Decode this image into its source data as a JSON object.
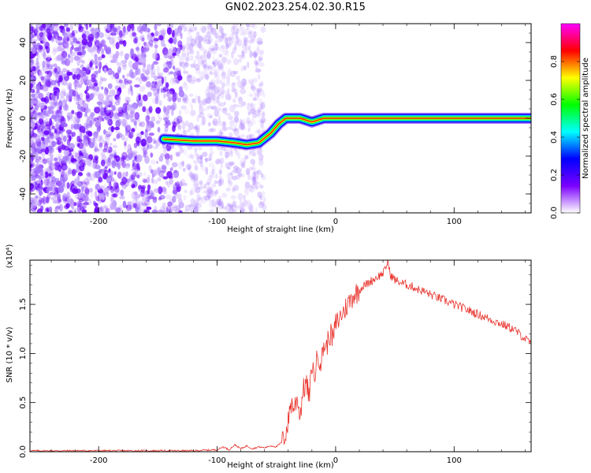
{
  "title": "GN02.2023.254.02.30.R15",
  "chart_data": [
    {
      "type": "heatmap",
      "title": "GN02.2023.254.02.30.R15",
      "xlabel": "Height of straight line (km)",
      "ylabel": "Frequency (Hz)",
      "xlim": [
        -258,
        165
      ],
      "ylim": [
        -50,
        50
      ],
      "x_ticks": [
        -200,
        -100,
        0,
        100
      ],
      "y_ticks": [
        40,
        20,
        0,
        -20,
        -40
      ],
      "colorbar": {
        "label": "Normalized spectral amplitude",
        "range": [
          0.0,
          1.0
        ],
        "ticks": [
          "0.0",
          "0.2",
          "0.4",
          "0.6",
          "0.8"
        ],
        "colormap": [
          "#ffffff",
          "#7b00ff",
          "#0000ff",
          "#00ffff",
          "#00ff00",
          "#ffff00",
          "#ff0000",
          "#ff00ff"
        ]
      },
      "ridge": {
        "x": [
          -145,
          -120,
          -100,
          -85,
          -75,
          -65,
          -55,
          -48,
          -42,
          -35,
          -30,
          -25,
          -20,
          -15,
          -10,
          0,
          10,
          20,
          40,
          60,
          80,
          100,
          120,
          140,
          165
        ],
        "y": [
          -11,
          -12,
          -12,
          -13,
          -14,
          -13,
          -8,
          -3,
          0,
          0,
          0,
          -1,
          -2,
          -1,
          0,
          0,
          0,
          0,
          0,
          0,
          0,
          0,
          0,
          0,
          0
        ]
      },
      "noise_region_x": [
        -258,
        -80
      ]
    },
    {
      "type": "line",
      "xlabel": "Height of straight line (km)",
      "ylabel": "SNR (10 * v/v)",
      "y_multiplier": "(x10⁴)",
      "xlim": [
        -258,
        165
      ],
      "ylim": [
        0,
        1.95
      ],
      "x_ticks": [
        -200,
        -100,
        0,
        100
      ],
      "y_ticks": [
        "0.0",
        "0.5",
        "1.0",
        "1.5"
      ],
      "line_color": "#e8312a",
      "series": [
        {
          "x": [
            -258,
            -200,
            -150,
            -120,
            -100,
            -95,
            -90,
            -85,
            -80,
            -75,
            -70,
            -65,
            -60,
            -55,
            -50,
            -45,
            -42,
            -40,
            -38,
            -35,
            -32,
            -30,
            -28,
            -25,
            -22,
            -20,
            -18,
            -15,
            -12,
            -10,
            -8,
            -5,
            -2,
            0,
            3,
            5,
            8,
            10,
            13,
            15,
            18,
            20,
            23,
            25,
            28,
            30,
            33,
            35,
            38,
            40,
            42,
            44,
            46,
            48,
            50,
            55,
            60,
            65,
            70,
            75,
            80,
            90,
            100,
            110,
            120,
            130,
            140,
            150,
            160,
            165
          ],
          "y": [
            0.01,
            0.01,
            0.01,
            0.01,
            0.02,
            0.05,
            0.02,
            0.07,
            0.03,
            0.06,
            0.03,
            0.05,
            0.04,
            0.06,
            0.05,
            0.1,
            0.2,
            0.3,
            0.5,
            0.45,
            0.55,
            0.35,
            0.6,
            0.7,
            0.55,
            0.9,
            0.75,
            1.0,
            0.9,
            1.1,
            1.05,
            1.2,
            1.15,
            1.3,
            1.35,
            1.4,
            1.45,
            1.5,
            1.55,
            1.6,
            1.62,
            1.65,
            1.68,
            1.7,
            1.72,
            1.74,
            1.76,
            1.78,
            1.8,
            1.82,
            1.85,
            1.95,
            1.8,
            1.78,
            1.75,
            1.72,
            1.7,
            1.68,
            1.65,
            1.63,
            1.6,
            1.55,
            1.5,
            1.45,
            1.4,
            1.35,
            1.3,
            1.25,
            1.15,
            1.1
          ]
        }
      ]
    }
  ]
}
